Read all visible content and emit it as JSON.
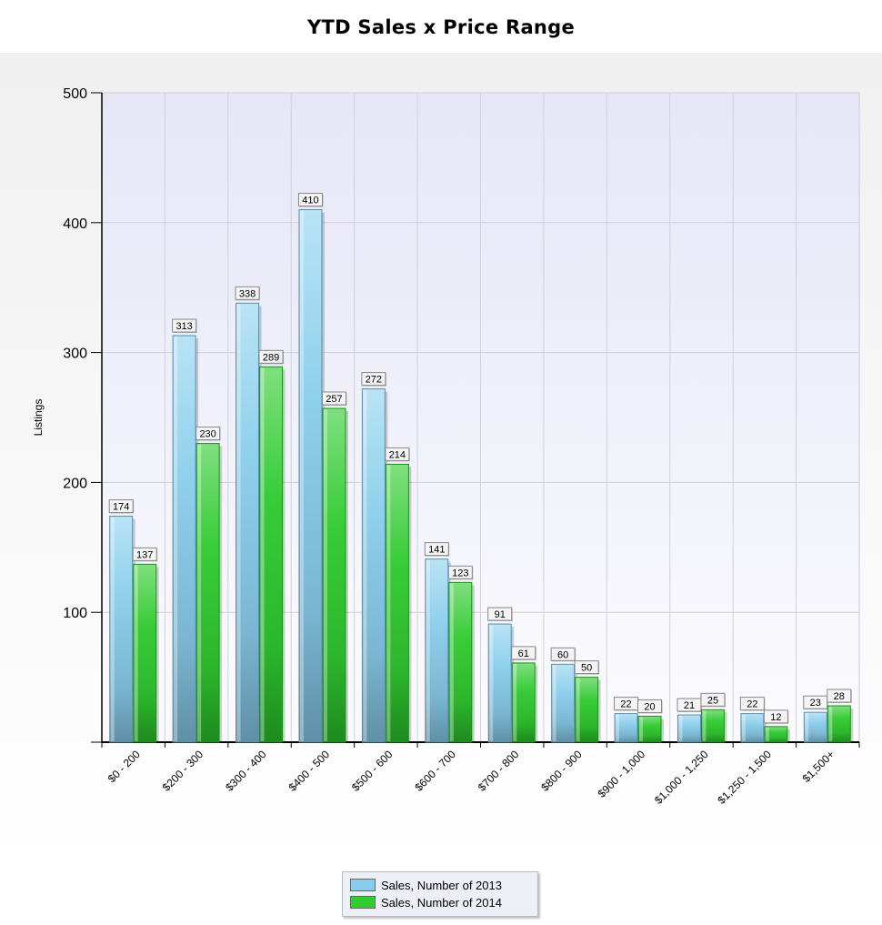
{
  "chart_data": {
    "type": "bar",
    "title": "YTD Sales x Price Range",
    "xlabel": "",
    "ylabel": "Listings",
    "ylim": [
      0,
      500
    ],
    "yticks": [
      100,
      200,
      300,
      400,
      500
    ],
    "grid": true,
    "legend_position": "bottom",
    "categories": [
      "$0 - 200",
      "$200 - 300",
      "$300 - 400",
      "$400 - 500",
      "$500 - 600",
      "$600 - 700",
      "$700 - 800",
      "$800 - 900",
      "$900 - 1,000",
      "$1,000 - 1,250",
      "$1,250 - 1,500",
      "$1,500+"
    ],
    "series": [
      {
        "name": "Sales, Number of 2013",
        "color": "#87ceeb",
        "values": [
          174,
          313,
          338,
          410,
          272,
          141,
          91,
          60,
          22,
          21,
          22,
          23
        ]
      },
      {
        "name": "Sales, Number of 2014",
        "color": "#32cd32",
        "values": [
          137,
          230,
          289,
          257,
          214,
          123,
          61,
          50,
          20,
          25,
          12,
          28
        ]
      }
    ]
  }
}
